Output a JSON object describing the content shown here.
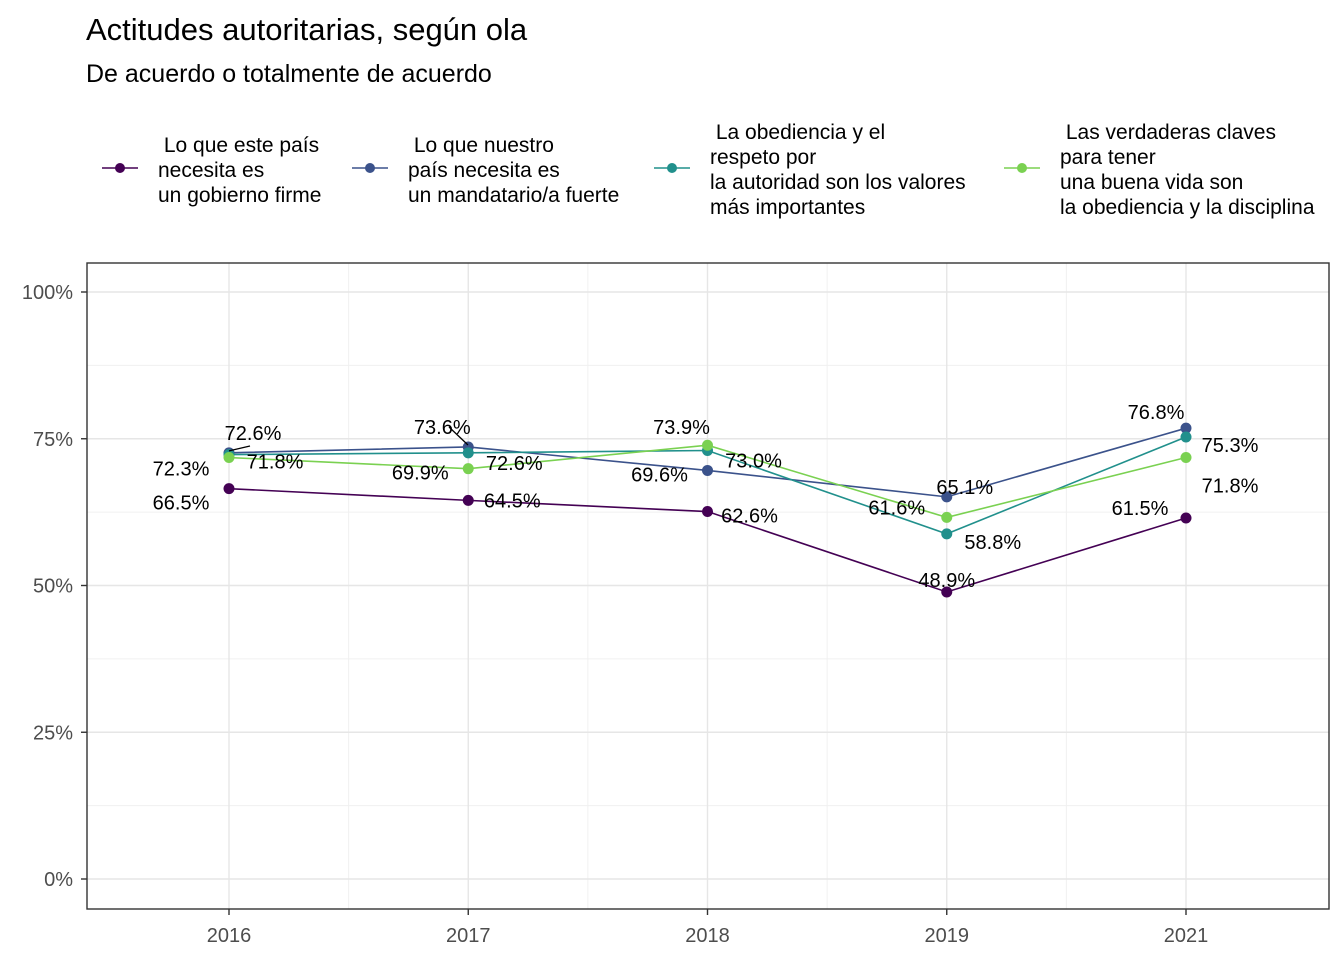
{
  "chart_data": {
    "type": "line",
    "title": "Actitudes autoritarias, según ola",
    "subtitle": "De acuerdo o totalmente de acuerdo",
    "xlabel": "",
    "ylabel": "",
    "categories": [
      "2016",
      "2017",
      "2018",
      "2019",
      "2021"
    ],
    "ylim": [
      0,
      100
    ],
    "yticks": [
      0,
      25,
      50,
      75,
      100
    ],
    "ytick_labels": [
      "0%",
      "25%",
      "50%",
      "75%",
      "100%"
    ],
    "legend_position": "top",
    "grid": true,
    "series": [
      {
        "name": " Lo que este país\nnecesita es\nun gobierno firme",
        "color": "#440154",
        "values": [
          66.5,
          64.5,
          62.6,
          48.9,
          61.5
        ],
        "labels": [
          "66.5%",
          "64.5%",
          "62.6%",
          "48.9%",
          "61.5%"
        ]
      },
      {
        "name": " Lo que nuestro\npaís necesita es\nun mandatario/a fuerte",
        "color": "#3b528b",
        "values": [
          72.6,
          73.6,
          69.6,
          65.1,
          76.8
        ],
        "labels": [
          "72.6%",
          "73.6%",
          "69.6%",
          "65.1%",
          "76.8%"
        ]
      },
      {
        "name": " La obediencia y el\nrespeto por\nla autoridad son los valores\nmás importantes",
        "color": "#21908c",
        "values": [
          72.3,
          72.6,
          73.0,
          58.8,
          75.3
        ],
        "labels": [
          "72.3%",
          "72.6%",
          "73.0%",
          "58.8%",
          "75.3%"
        ]
      },
      {
        "name": " Las verdaderas claves\npara tener\nuna buena vida son\nla obediencia y la disciplina",
        "color": "#7ad151",
        "values": [
          71.8,
          69.9,
          73.9,
          61.6,
          71.8
        ],
        "labels": [
          "71.8%",
          "69.9%",
          "73.9%",
          "61.6%",
          "71.8%"
        ]
      }
    ]
  }
}
